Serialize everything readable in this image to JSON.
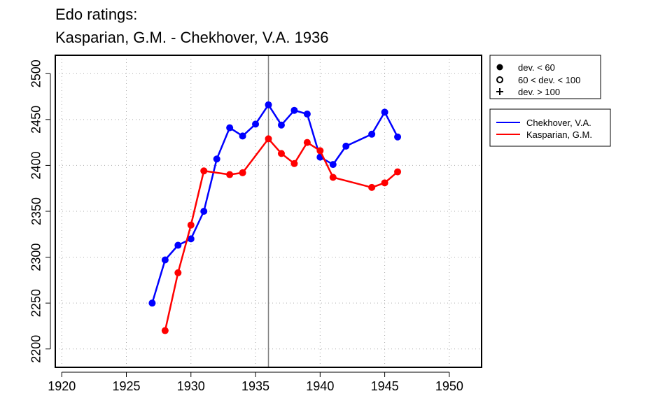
{
  "chart_data": {
    "type": "line",
    "title_line1": "Edo ratings:",
    "title_line2": "Kasparian, G.M. - Chekhover, V.A. 1936",
    "xlabel": "",
    "ylabel": "",
    "xlim": [
      1919.5,
      1952.5
    ],
    "ylim": [
      2180,
      2520
    ],
    "x_ticks": [
      1920,
      1925,
      1930,
      1935,
      1940,
      1945,
      1950
    ],
    "y_ticks": [
      2200,
      2250,
      2300,
      2350,
      2400,
      2450,
      2500
    ],
    "grid": true,
    "marker_year": 1936,
    "series": [
      {
        "name": "Chekhover, V.A.",
        "color": "#0000ff",
        "points": [
          {
            "x": 1927,
            "y": 2250
          },
          {
            "x": 1928,
            "y": 2297
          },
          {
            "x": 1929,
            "y": 2313
          },
          {
            "x": 1930,
            "y": 2320
          },
          {
            "x": 1931,
            "y": 2350
          },
          {
            "x": 1932,
            "y": 2407
          },
          {
            "x": 1933,
            "y": 2441
          },
          {
            "x": 1934,
            "y": 2432
          },
          {
            "x": 1935,
            "y": 2445
          },
          {
            "x": 1936,
            "y": 2466
          },
          {
            "x": 1937,
            "y": 2444
          },
          {
            "x": 1938,
            "y": 2460
          },
          {
            "x": 1939,
            "y": 2456
          },
          {
            "x": 1940,
            "y": 2409
          },
          {
            "x": 1941,
            "y": 2401
          },
          {
            "x": 1942,
            "y": 2421
          },
          {
            "x": 1944,
            "y": 2434
          },
          {
            "x": 1945,
            "y": 2458
          },
          {
            "x": 1946,
            "y": 2431
          }
        ]
      },
      {
        "name": "Kasparian, G.M.",
        "color": "#ff0000",
        "points": [
          {
            "x": 1928,
            "y": 2220
          },
          {
            "x": 1929,
            "y": 2283
          },
          {
            "x": 1930,
            "y": 2335
          },
          {
            "x": 1931,
            "y": 2394
          },
          {
            "x": 1933,
            "y": 2390
          },
          {
            "x": 1934,
            "y": 2392
          },
          {
            "x": 1936,
            "y": 2429
          },
          {
            "x": 1937,
            "y": 2413
          },
          {
            "x": 1938,
            "y": 2402
          },
          {
            "x": 1939,
            "y": 2425
          },
          {
            "x": 1940,
            "y": 2416
          },
          {
            "x": 1941,
            "y": 2387
          },
          {
            "x": 1944,
            "y": 2376
          },
          {
            "x": 1945,
            "y": 2381
          },
          {
            "x": 1946,
            "y": 2393
          }
        ]
      }
    ],
    "marker_legend": [
      {
        "symbol": "filled-circle",
        "label": "dev. < 60"
      },
      {
        "symbol": "open-circle",
        "label": "60 < dev. < 100"
      },
      {
        "symbol": "plus",
        "label": "dev. > 100"
      }
    ],
    "series_legend_placement": "right, outside plot",
    "axis_color": "#000000",
    "grid_color": "#aaaaaa",
    "marker_line_color": "#808080"
  }
}
